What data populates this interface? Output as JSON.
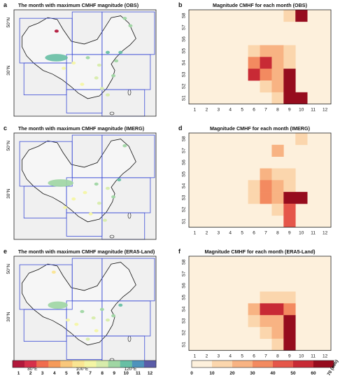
{
  "panel_letters": [
    "a",
    "b",
    "c",
    "d",
    "e",
    "f"
  ],
  "lat_labels": [
    "50°N",
    "30°N"
  ],
  "lon_labels": [
    "80°E",
    "100°E",
    "120°E"
  ],
  "colorbar_left": {
    "ticks": [
      "1",
      "2",
      "3",
      "4",
      "5",
      "6",
      "7",
      "8",
      "9",
      "10",
      "11",
      "12"
    ],
    "colors": [
      "#b2183b",
      "#d6304a",
      "#f06c4e",
      "#f59a5a",
      "#f9c77b",
      "#fae592",
      "#f4f5a4",
      "#d7ecab",
      "#9fd6a3",
      "#67bfa4",
      "#4e93bc",
      "#5a5ca8"
    ]
  },
  "colorbar_right": {
    "ticks": [
      "0",
      "10",
      "20",
      "30",
      "40",
      "50",
      "60",
      "70 (mm)"
    ],
    "colors": [
      "#fdf0dc",
      "#fbd6ad",
      "#f8b383",
      "#f38a60",
      "#e5564a",
      "#c82a35",
      "#960c1e"
    ]
  },
  "maps": [
    {
      "title": "The month with maximum CMHF magnitude (OBS)"
    },
    {
      "title": "The month with maximum CMHF magnitude (IMERG)"
    },
    {
      "title": "The month with maximum CMHF magnitude (ERA5-Land)"
    }
  ],
  "chart_data": [
    {
      "type": "heatmap",
      "title": "Magnitude CMHF for each month (OBS)",
      "x_categories": [
        "1",
        "2",
        "3",
        "4",
        "5",
        "6",
        "7",
        "8",
        "9",
        "10",
        "11",
        "12"
      ],
      "y_categories": [
        "S1",
        "S2",
        "S3",
        "S4",
        "S5",
        "S6",
        "S7",
        "S8"
      ],
      "unit": "mm",
      "value_range": [
        0,
        70
      ],
      "cells": [
        {
          "x": "9",
          "y": "S8",
          "value": 15
        },
        {
          "x": "10",
          "y": "S8",
          "value": 68
        },
        {
          "x": "6",
          "y": "S5",
          "value": 15
        },
        {
          "x": "7",
          "y": "S5",
          "value": 25
        },
        {
          "x": "8",
          "y": "S5",
          "value": 25
        },
        {
          "x": "9",
          "y": "S5",
          "value": 15
        },
        {
          "x": "6",
          "y": "S4",
          "value": 35
        },
        {
          "x": "7",
          "y": "S4",
          "value": 55
        },
        {
          "x": "8",
          "y": "S4",
          "value": 25
        },
        {
          "x": "9",
          "y": "S4",
          "value": 15
        },
        {
          "x": "6",
          "y": "S3",
          "value": 55
        },
        {
          "x": "7",
          "y": "S3",
          "value": 35
        },
        {
          "x": "8",
          "y": "S3",
          "value": 25
        },
        {
          "x": "9",
          "y": "S3",
          "value": 68
        },
        {
          "x": "7",
          "y": "S2",
          "value": 15
        },
        {
          "x": "8",
          "y": "S2",
          "value": 25
        },
        {
          "x": "9",
          "y": "S2",
          "value": 68
        },
        {
          "x": "8",
          "y": "S1",
          "value": 15
        },
        {
          "x": "9",
          "y": "S1",
          "value": 68
        },
        {
          "x": "10",
          "y": "S1",
          "value": 68
        }
      ]
    },
    {
      "type": "heatmap",
      "title": "Magnitude CMHF for each month (IMERG)",
      "x_categories": [
        "1",
        "2",
        "3",
        "4",
        "5",
        "6",
        "7",
        "8",
        "9",
        "10",
        "11",
        "12"
      ],
      "y_categories": [
        "S1",
        "S2",
        "S3",
        "S4",
        "S5",
        "S6",
        "S7",
        "S8"
      ],
      "unit": "mm",
      "value_range": [
        0,
        70
      ],
      "cells": [
        {
          "x": "10",
          "y": "S8",
          "value": 15
        },
        {
          "x": "8",
          "y": "S7",
          "value": 25
        },
        {
          "x": "7",
          "y": "S5",
          "value": 25
        },
        {
          "x": "8",
          "y": "S5",
          "value": 15
        },
        {
          "x": "9",
          "y": "S5",
          "value": 15
        },
        {
          "x": "6",
          "y": "S4",
          "value": 15
        },
        {
          "x": "7",
          "y": "S4",
          "value": 35
        },
        {
          "x": "8",
          "y": "S4",
          "value": 25
        },
        {
          "x": "9",
          "y": "S4",
          "value": 15
        },
        {
          "x": "6",
          "y": "S3",
          "value": 15
        },
        {
          "x": "7",
          "y": "S3",
          "value": 35
        },
        {
          "x": "8",
          "y": "S3",
          "value": 25
        },
        {
          "x": "9",
          "y": "S3",
          "value": 68
        },
        {
          "x": "10",
          "y": "S3",
          "value": 68
        },
        {
          "x": "8",
          "y": "S2",
          "value": 15
        },
        {
          "x": "9",
          "y": "S2",
          "value": 45
        },
        {
          "x": "9",
          "y": "S1",
          "value": 45
        }
      ]
    },
    {
      "type": "heatmap",
      "title": "Magnitude CMHF for each month (ERA5-Land)",
      "x_categories": [
        "1",
        "2",
        "3",
        "4",
        "5",
        "6",
        "7",
        "8",
        "9",
        "10",
        "11",
        "12"
      ],
      "y_categories": [
        "S1",
        "S2",
        "S3",
        "S4",
        "S5",
        "S6",
        "S7",
        "S8"
      ],
      "unit": "mm",
      "value_range": [
        0,
        70
      ],
      "cells": [
        {
          "x": "7",
          "y": "S5",
          "value": 15
        },
        {
          "x": "8",
          "y": "S5",
          "value": 15
        },
        {
          "x": "9",
          "y": "S5",
          "value": 15
        },
        {
          "x": "6",
          "y": "S4",
          "value": 25
        },
        {
          "x": "7",
          "y": "S4",
          "value": 55
        },
        {
          "x": "8",
          "y": "S4",
          "value": 55
        },
        {
          "x": "9",
          "y": "S4",
          "value": 35
        },
        {
          "x": "6",
          "y": "S3",
          "value": 15
        },
        {
          "x": "7",
          "y": "S3",
          "value": 25
        },
        {
          "x": "8",
          "y": "S3",
          "value": 25
        },
        {
          "x": "9",
          "y": "S3",
          "value": 68
        },
        {
          "x": "7",
          "y": "S2",
          "value": 15
        },
        {
          "x": "8",
          "y": "S2",
          "value": 25
        },
        {
          "x": "9",
          "y": "S2",
          "value": 68
        },
        {
          "x": "8",
          "y": "S1",
          "value": 15
        },
        {
          "x": "9",
          "y": "S1",
          "value": 68
        }
      ]
    }
  ]
}
